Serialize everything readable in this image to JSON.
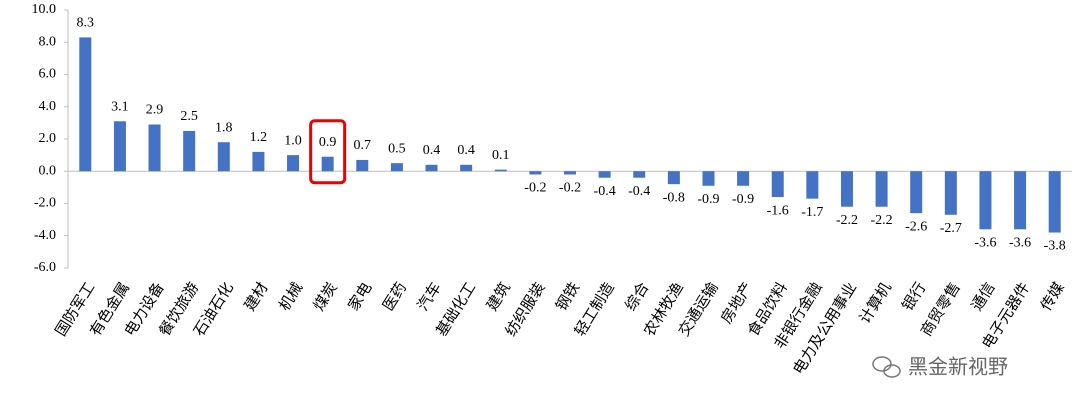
{
  "chart_data": {
    "type": "bar",
    "categories": [
      "国防军工",
      "有色金属",
      "电力设备",
      "餐饮旅游",
      "石油石化",
      "建材",
      "机械",
      "煤炭",
      "家电",
      "医药",
      "汽车",
      "基础化工",
      "建筑",
      "纺织服装",
      "钢铁",
      "轻工制造",
      "综合",
      "农林牧渔",
      "交通运输",
      "房地产",
      "食品饮料",
      "非银行金融",
      "电力及公用事业",
      "计算机",
      "银行",
      "商贸零售",
      "通信",
      "电子元器件",
      "传媒"
    ],
    "values": [
      8.3,
      3.1,
      2.9,
      2.5,
      1.8,
      1.2,
      1.0,
      0.9,
      0.7,
      0.5,
      0.4,
      0.4,
      0.1,
      -0.2,
      -0.2,
      -0.4,
      -0.4,
      -0.8,
      -0.9,
      -0.9,
      -1.6,
      -1.7,
      -2.2,
      -2.2,
      -2.6,
      -2.7,
      -3.6,
      -3.6,
      -3.8
    ],
    "value_labels": [
      "8.3",
      "3.1",
      "2.9",
      "2.5",
      "1.8",
      "1.2",
      "1.0",
      "0.9",
      "0.7",
      "0.5",
      "0.4",
      "0.4",
      "0.1",
      "-0.2",
      "-0.2",
      "-0.4",
      "-0.4",
      "-0.8",
      "-0.9",
      "-0.9",
      "-1.6",
      "-1.7",
      "-2.2",
      "-2.2",
      "-2.6",
      "-2.7",
      "-3.6",
      "-3.6",
      "-3.8"
    ],
    "color": "#4472c4",
    "ylim": [
      -6,
      10
    ],
    "yticks": [
      {
        "value": -6,
        "label": "-6.0"
      },
      {
        "value": -4,
        "label": "-4.0"
      },
      {
        "value": -2,
        "label": "-2.0"
      },
      {
        "value": 0,
        "label": "0.0"
      },
      {
        "value": 2,
        "label": "2.0"
      },
      {
        "value": 4,
        "label": "4.0"
      },
      {
        "value": 6,
        "label": "6.0"
      },
      {
        "value": 8,
        "label": "8.0"
      },
      {
        "value": 10,
        "label": "10.0"
      }
    ],
    "watermark": "黑金新视野"
  }
}
